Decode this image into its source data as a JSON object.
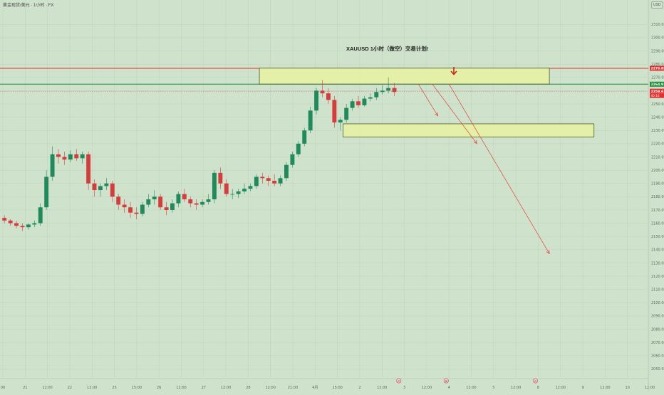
{
  "header": {
    "symbol_title": "黄金现货/美元 · 1小时 · FX",
    "currency": "USD"
  },
  "annotation": {
    "plan_title": "XAUUSD 1小时（做空）交易计划!"
  },
  "colors": {
    "background": "#cfe3cc",
    "up_candle": "#1f8a5b",
    "down_candle": "#d63c3c",
    "zone_fill": "#e6f0a6",
    "red_line": "#e03030",
    "green_line": "#1f8a3a",
    "arrow": "#e84040"
  },
  "chart_data": {
    "type": "candlestick",
    "y_axis": {
      "min": 2047,
      "max": 2315,
      "ticks": [
        2310,
        2300,
        2290,
        2280,
        2270,
        2260,
        2250,
        2240,
        2230,
        2220,
        2210,
        2200,
        2190,
        2180,
        2170,
        2160,
        2150,
        2140,
        2130,
        2120,
        2110,
        2100,
        2090,
        2080,
        2070,
        2060,
        2050
      ],
      "tick_labels": [
        "2310.00",
        "2300.00",
        "2290.00",
        "2280.00",
        "2270.00",
        "2260.00",
        "2250.00",
        "2240.00",
        "2230.00",
        "2220.00",
        "2210.00",
        "2200.00",
        "2190.00",
        "2180.00",
        "2170.00",
        "2160.00",
        "2150.00",
        "2140.00",
        "2130.00",
        "2120.00",
        "2110.00",
        "2100.00",
        "2090.00",
        "2080.00",
        "2070.00",
        "2060.00",
        "2050.00"
      ]
    },
    "x_axis": {
      "tick_labels": [
        "00",
        "21",
        "12:00",
        "22",
        "12:00",
        "25",
        "15:00",
        "26",
        "12:00",
        "27",
        "12:00",
        "28",
        "12:00",
        "21:00",
        "4月",
        "15:00",
        "2",
        "12:00",
        "3",
        "12:00",
        "4",
        "12:00",
        "5",
        "12:00",
        "8",
        "12:00",
        "9",
        "12:00",
        "10",
        "12:00"
      ]
    },
    "price_labels": {
      "resistance": "2276.88",
      "support_line": "2264.93",
      "current": "2259.63",
      "countdown": "40:16"
    },
    "levels": {
      "red_resistance": 2276.9,
      "green_support": 2264.9,
      "current_price": 2259.6
    },
    "zones": [
      {
        "name": "sell-zone",
        "x_start": 46,
        "x_end": 98,
        "price_low": 2265,
        "price_high": 2277
      },
      {
        "name": "target-zone",
        "x_start": 61,
        "x_end": 106,
        "price_low": 2225,
        "price_high": 2235
      }
    ],
    "projection_arrows": [
      {
        "from": [
          74.5,
          2265
        ],
        "to": [
          78,
          2241
        ]
      },
      {
        "from": [
          77,
          2265
        ],
        "to": [
          85,
          2220
        ]
      },
      {
        "from": [
          80,
          2265
        ],
        "to": [
          98,
          2137
        ]
      }
    ],
    "event_markers": [
      {
        "x": 71,
        "label": "⊙"
      },
      {
        "x": 79.5,
        "label": "⊚"
      },
      {
        "x": 95.5,
        "label": "⊙"
      }
    ],
    "candles": [
      [
        2164,
        2166,
        2160,
        2162
      ],
      [
        2162,
        2163,
        2158,
        2160
      ],
      [
        2160,
        2162,
        2156,
        2158
      ],
      [
        2158,
        2160,
        2154,
        2157
      ],
      [
        2157,
        2160,
        2155,
        2159
      ],
      [
        2159,
        2162,
        2157,
        2160
      ],
      [
        2160,
        2175,
        2158,
        2172
      ],
      [
        2172,
        2200,
        2170,
        2195
      ],
      [
        2195,
        2218,
        2192,
        2212
      ],
      [
        2212,
        2216,
        2205,
        2210
      ],
      [
        2210,
        2214,
        2204,
        2208
      ],
      [
        2208,
        2215,
        2206,
        2212
      ],
      [
        2212,
        2216,
        2207,
        2209
      ],
      [
        2209,
        2214,
        2205,
        2212
      ],
      [
        2212,
        2214,
        2185,
        2190
      ],
      [
        2190,
        2193,
        2180,
        2185
      ],
      [
        2185,
        2190,
        2180,
        2188
      ],
      [
        2188,
        2194,
        2185,
        2190
      ],
      [
        2190,
        2192,
        2176,
        2180
      ],
      [
        2180,
        2182,
        2170,
        2174
      ],
      [
        2174,
        2178,
        2168,
        2172
      ],
      [
        2172,
        2176,
        2164,
        2168
      ],
      [
        2168,
        2172,
        2163,
        2167
      ],
      [
        2167,
        2176,
        2165,
        2174
      ],
      [
        2174,
        2182,
        2172,
        2178
      ],
      [
        2178,
        2185,
        2174,
        2180
      ],
      [
        2180,
        2182,
        2170,
        2172
      ],
      [
        2172,
        2176,
        2166,
        2170
      ],
      [
        2170,
        2178,
        2168,
        2175
      ],
      [
        2175,
        2184,
        2172,
        2182
      ],
      [
        2182,
        2186,
        2176,
        2178
      ],
      [
        2178,
        2180,
        2172,
        2175
      ],
      [
        2175,
        2178,
        2170,
        2174
      ],
      [
        2174,
        2178,
        2172,
        2176
      ],
      [
        2176,
        2182,
        2174,
        2178
      ],
      [
        2178,
        2200,
        2175,
        2198
      ],
      [
        2198,
        2202,
        2186,
        2190
      ],
      [
        2190,
        2193,
        2180,
        2182
      ],
      [
        2182,
        2186,
        2178,
        2182
      ],
      [
        2182,
        2186,
        2179,
        2184
      ],
      [
        2184,
        2190,
        2182,
        2186
      ],
      [
        2186,
        2190,
        2184,
        2188
      ],
      [
        2188,
        2197,
        2186,
        2195
      ],
      [
        2195,
        2198,
        2190,
        2194
      ],
      [
        2194,
        2196,
        2188,
        2192
      ],
      [
        2192,
        2197,
        2188,
        2190
      ],
      [
        2190,
        2196,
        2188,
        2194
      ],
      [
        2194,
        2206,
        2192,
        2204
      ],
      [
        2204,
        2214,
        2202,
        2212
      ],
      [
        2212,
        2222,
        2210,
        2220
      ],
      [
        2220,
        2232,
        2218,
        2230
      ],
      [
        2230,
        2248,
        2228,
        2245
      ],
      [
        2245,
        2262,
        2242,
        2260
      ],
      [
        2260,
        2268,
        2255,
        2258
      ],
      [
        2258,
        2262,
        2250,
        2253
      ],
      [
        2253,
        2256,
        2232,
        2236
      ],
      [
        2236,
        2240,
        2230,
        2238
      ],
      [
        2238,
        2250,
        2236,
        2247
      ],
      [
        2247,
        2254,
        2245,
        2252
      ],
      [
        2252,
        2256,
        2247,
        2249
      ],
      [
        2249,
        2256,
        2248,
        2254
      ],
      [
        2254,
        2258,
        2252,
        2255
      ],
      [
        2255,
        2262,
        2253,
        2259
      ],
      [
        2259,
        2264,
        2257,
        2260
      ],
      [
        2260,
        2270,
        2258,
        2262
      ],
      [
        2262,
        2266,
        2256,
        2259
      ]
    ]
  }
}
